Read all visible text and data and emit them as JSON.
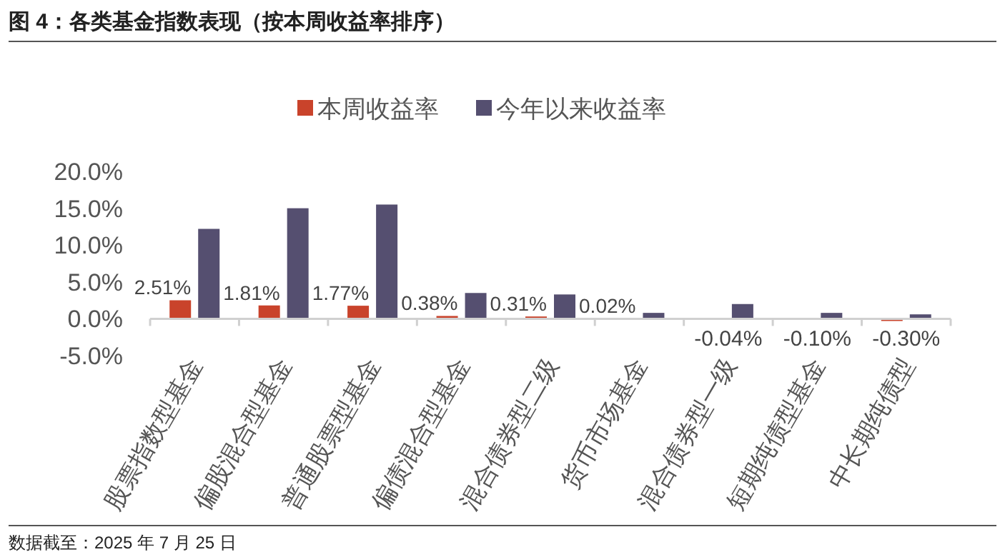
{
  "chart_data": {
    "type": "bar",
    "title": "图 4：各类基金指数表现（按本周收益率排序）",
    "categories": [
      "股票指数型基金",
      "偏股混合型基金",
      "普通股票型基金",
      "偏债混合型基金",
      "混合债券型二级",
      "货币市场基金",
      "混合债券型一级",
      "短期纯债型基金",
      "中长期纯债型"
    ],
    "series": [
      {
        "name": "本周收益率",
        "color": "#c9432b",
        "values": [
          2.51,
          1.81,
          1.77,
          0.38,
          0.31,
          0.02,
          -0.04,
          -0.1,
          -0.3
        ],
        "value_labels": [
          "2.51%",
          "1.81%",
          "1.77%",
          "0.38%",
          "0.31%",
          "0.02%",
          "-0.04%",
          "-0.10%",
          "-0.30%"
        ]
      },
      {
        "name": "今年以来收益率",
        "color": "#554f70",
        "values": [
          12.2,
          15.0,
          15.5,
          3.5,
          3.3,
          0.8,
          2.0,
          0.8,
          0.6
        ]
      }
    ],
    "ylim": [
      -5,
      20
    ],
    "yticks": [
      {
        "value": -5,
        "label": "-5.0%"
      },
      {
        "value": 0,
        "label": "0.0%"
      },
      {
        "value": 5,
        "label": "5.0%"
      },
      {
        "value": 10,
        "label": "10.0%"
      },
      {
        "value": 15,
        "label": "15.0%"
      },
      {
        "value": 20,
        "label": "20.0%"
      }
    ],
    "grid": false,
    "legend": "top",
    "annotations": [
      "数据截至：2025 年 7 月 25 日"
    ]
  }
}
